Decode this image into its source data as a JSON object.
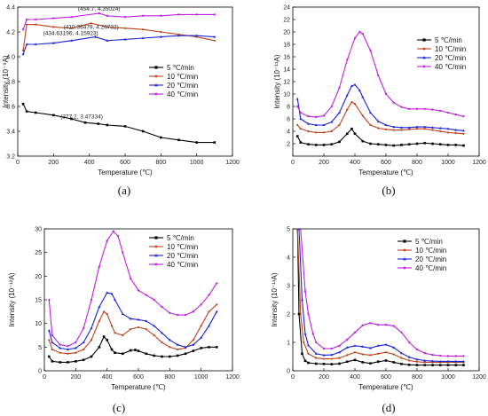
{
  "series_styles": [
    {
      "color": "#000000",
      "marker": "square"
    },
    {
      "color": "#c0401a",
      "marker": "circle"
    },
    {
      "color": "#1a22d6",
      "marker": "triangle"
    },
    {
      "color": "#c020e0",
      "marker": "star"
    }
  ],
  "chart_data": [
    {
      "type": "line",
      "panel": "(a)",
      "caption": "(a)",
      "xlabel": "Temperature (℃)",
      "ylabel": "Intensity (10⁻⁹A)",
      "xlim": [
        0,
        1200
      ],
      "ylim": [
        3.2,
        4.4
      ],
      "xticks": [
        "0",
        "200",
        "400",
        "600",
        "800",
        "1000",
        "1200"
      ],
      "yticks": [
        "3.2",
        "3.4",
        "3.6",
        "3.8",
        "4.0",
        "4.2",
        "4.4"
      ],
      "legend_position": "center-right",
      "series": [
        {
          "name": "5 ℃/min",
          "x": [
            30,
            50,
            100,
            200,
            300,
            377,
            450,
            500,
            600,
            700,
            800,
            900,
            1000,
            1100
          ],
          "y": [
            3.62,
            3.56,
            3.55,
            3.53,
            3.5,
            3.47,
            3.46,
            3.45,
            3.44,
            3.4,
            3.35,
            3.33,
            3.31,
            3.31
          ]
        },
        {
          "name": "10 ℃/min",
          "x": [
            30,
            50,
            100,
            200,
            300,
            410,
            500,
            600,
            700,
            800,
            900,
            1000,
            1100
          ],
          "y": [
            4.05,
            4.26,
            4.26,
            4.24,
            4.23,
            4.27,
            4.24,
            4.23,
            4.22,
            4.2,
            4.18,
            4.16,
            4.13
          ]
        },
        {
          "name": "20 ℃/min",
          "x": [
            30,
            50,
            100,
            200,
            300,
            434,
            500,
            600,
            700,
            800,
            900,
            1000,
            1100
          ],
          "y": [
            4.02,
            4.1,
            4.1,
            4.11,
            4.13,
            4.16,
            4.13,
            4.14,
            4.15,
            4.16,
            4.17,
            4.17,
            4.16
          ]
        },
        {
          "name": "40 ℃/min",
          "x": [
            30,
            50,
            100,
            200,
            300,
            454,
            500,
            600,
            700,
            800,
            900,
            1000,
            1100
          ],
          "y": [
            4.22,
            4.3,
            4.3,
            4.31,
            4.32,
            4.35,
            4.33,
            4.32,
            4.33,
            4.33,
            4.34,
            4.34,
            4.34
          ]
        }
      ],
      "annotations": [
        {
          "text": "(454.7, 4.35024)",
          "x": 454.7,
          "y": 4.35024
        },
        {
          "text": "(410.36479, 4.26732)",
          "x": 410.36,
          "y": 4.26732
        },
        {
          "text": "(434.63196, 4.15923)",
          "x": 434.63,
          "y": 4.15923
        },
        {
          "text": "(377.2, 3.47334)",
          "x": 377.2,
          "y": 3.47334
        }
      ]
    },
    {
      "type": "line",
      "panel": "(b)",
      "caption": "(b)",
      "xlabel": "Temperature (℃)",
      "ylabel": "Intensity (10⁻¹¹A)",
      "xlim": [
        0,
        1200
      ],
      "ylim": [
        0,
        24
      ],
      "xticks": [
        "0",
        "200",
        "400",
        "600",
        "800",
        "1000",
        "1200"
      ],
      "yticks": [
        "2",
        "4",
        "6",
        "8",
        "10",
        "12",
        "14",
        "16",
        "18",
        "20",
        "22",
        "24"
      ],
      "legend_position": "top-right",
      "series": [
        {
          "name": "5 ℃/min",
          "x": [
            30,
            50,
            100,
            150,
            200,
            250,
            300,
            350,
            380,
            400,
            450,
            500,
            550,
            600,
            650,
            700,
            750,
            800,
            850,
            900,
            950,
            1000,
            1050,
            1100
          ],
          "y": [
            3.2,
            2.2,
            1.9,
            1.8,
            1.8,
            1.9,
            2.3,
            3.6,
            4.4,
            3.6,
            2.4,
            2.0,
            1.9,
            1.8,
            1.7,
            1.8,
            1.9,
            2.0,
            2.1,
            2.0,
            1.9,
            1.8,
            1.8,
            1.7
          ]
        },
        {
          "name": "10 ℃/min",
          "x": [
            30,
            50,
            100,
            150,
            200,
            250,
            300,
            350,
            380,
            400,
            450,
            500,
            550,
            600,
            650,
            700,
            750,
            800,
            850,
            900,
            950,
            1000,
            1050,
            1100
          ],
          "y": [
            5.0,
            4.4,
            4.0,
            3.8,
            3.8,
            4.0,
            5.0,
            7.5,
            8.7,
            8.4,
            6.5,
            5.0,
            4.5,
            4.3,
            4.2,
            4.2,
            4.3,
            4.4,
            4.4,
            4.2,
            4.0,
            3.8,
            3.7,
            3.6
          ]
        },
        {
          "name": "20 ℃/min",
          "x": [
            30,
            50,
            100,
            150,
            200,
            250,
            300,
            350,
            380,
            400,
            430,
            450,
            500,
            550,
            600,
            650,
            700,
            750,
            800,
            850,
            900,
            950,
            1000,
            1050,
            1100
          ],
          "y": [
            9.2,
            6.0,
            5.2,
            5.0,
            5.0,
            5.5,
            7.0,
            9.8,
            11.3,
            11.5,
            10.6,
            9.5,
            7.0,
            5.6,
            5.0,
            4.7,
            4.6,
            4.6,
            4.7,
            4.7,
            4.6,
            4.5,
            4.4,
            4.2,
            4.1
          ]
        },
        {
          "name": "40 ℃/min",
          "x": [
            30,
            50,
            100,
            150,
            200,
            250,
            300,
            350,
            400,
            430,
            450,
            500,
            550,
            600,
            650,
            700,
            750,
            800,
            850,
            900,
            950,
            1000,
            1050,
            1100
          ],
          "y": [
            8.0,
            7.0,
            6.4,
            6.3,
            6.5,
            8.0,
            11.0,
            15.5,
            19.0,
            20.0,
            19.7,
            17.0,
            13.0,
            10.0,
            8.6,
            7.9,
            7.6,
            7.6,
            7.6,
            7.5,
            7.3,
            7.0,
            6.7,
            6.4
          ]
        }
      ]
    },
    {
      "type": "line",
      "panel": "(c)",
      "caption": "(c)",
      "xlabel": "Temperature (℃)",
      "ylabel": "Intensity (10⁻¹²A)",
      "xlim": [
        0,
        1200
      ],
      "ylim": [
        0,
        30
      ],
      "xticks": [
        "0",
        "200",
        "400",
        "600",
        "800",
        "1000",
        "1200"
      ],
      "yticks": [
        "0",
        "5",
        "10",
        "15",
        "20",
        "25",
        "30"
      ],
      "legend_position": "top-right",
      "series": [
        {
          "name": "5 ℃/min",
          "x": [
            30,
            50,
            100,
            150,
            200,
            250,
            300,
            350,
            380,
            400,
            430,
            450,
            500,
            550,
            580,
            600,
            650,
            700,
            750,
            800,
            850,
            900,
            950,
            1000,
            1050,
            1100
          ],
          "y": [
            3.0,
            2.0,
            1.8,
            1.8,
            2.0,
            2.3,
            3.0,
            5.0,
            7.2,
            6.5,
            4.5,
            3.8,
            3.6,
            4.3,
            4.4,
            4.2,
            3.6,
            3.2,
            3.0,
            3.0,
            3.2,
            3.6,
            4.2,
            4.8,
            5.0,
            5.0
          ]
        },
        {
          "name": "10 ℃/min",
          "x": [
            30,
            50,
            100,
            150,
            200,
            250,
            300,
            350,
            380,
            400,
            430,
            450,
            500,
            550,
            600,
            650,
            700,
            750,
            800,
            850,
            900,
            950,
            1000,
            1050,
            1100
          ],
          "y": [
            6.5,
            4.5,
            3.8,
            3.6,
            3.8,
            4.5,
            6.5,
            10.5,
            12.5,
            12.0,
            9.5,
            8.0,
            7.5,
            8.8,
            9.2,
            8.8,
            7.5,
            6.0,
            5.0,
            4.5,
            4.8,
            6.5,
            9.5,
            12.5,
            14.0
          ]
        },
        {
          "name": "20 ℃/min",
          "x": [
            30,
            50,
            100,
            150,
            200,
            250,
            300,
            350,
            400,
            430,
            450,
            500,
            550,
            600,
            650,
            700,
            750,
            800,
            850,
            900,
            950,
            1000,
            1050,
            1100
          ],
          "y": [
            8.5,
            6.0,
            4.8,
            4.5,
            4.8,
            6.0,
            9.0,
            13.5,
            16.5,
            16.3,
            15.0,
            12.0,
            11.0,
            10.8,
            10.5,
            9.5,
            8.0,
            6.5,
            5.5,
            5.0,
            5.5,
            7.0,
            9.5,
            12.5
          ]
        },
        {
          "name": "40 ℃/min",
          "x": [
            30,
            50,
            100,
            150,
            200,
            250,
            300,
            350,
            400,
            440,
            470,
            500,
            550,
            600,
            650,
            700,
            750,
            800,
            850,
            900,
            950,
            1000,
            1050,
            1100
          ],
          "y": [
            15.0,
            7.5,
            5.5,
            5.2,
            6.0,
            9.0,
            15.0,
            22.0,
            27.5,
            29.5,
            28.5,
            25.0,
            19.5,
            17.0,
            16.0,
            15.0,
            13.5,
            12.2,
            11.8,
            11.8,
            12.5,
            14.0,
            16.0,
            18.5
          ]
        }
      ]
    },
    {
      "type": "line",
      "panel": "(d)",
      "caption": "(d)",
      "xlabel": "Temperature (℃)",
      "ylabel": "Intensity (10⁻¹¹A)",
      "xlim": [
        0,
        1200
      ],
      "ylim": [
        0,
        5
      ],
      "xticks": [
        "0",
        "200",
        "400",
        "600",
        "800",
        "1000",
        "1200"
      ],
      "yticks": [
        "0",
        "1",
        "2",
        "3",
        "4",
        "5"
      ],
      "legend_position": "top-right",
      "series": [
        {
          "name": "5 ℃/min",
          "x": [
            30,
            40,
            60,
            80,
            100,
            150,
            200,
            250,
            300,
            350,
            400,
            450,
            500,
            550,
            600,
            650,
            700,
            750,
            800,
            850,
            900,
            950,
            1000,
            1050,
            1100
          ],
          "y": [
            5.0,
            2.0,
            0.6,
            0.35,
            0.28,
            0.25,
            0.24,
            0.23,
            0.25,
            0.32,
            0.38,
            0.3,
            0.26,
            0.32,
            0.36,
            0.3,
            0.24,
            0.21,
            0.2,
            0.2,
            0.2,
            0.2,
            0.2,
            0.2,
            0.2
          ]
        },
        {
          "name": "10 ℃/min",
          "x": [
            30,
            50,
            70,
            100,
            150,
            200,
            250,
            300,
            350,
            400,
            450,
            500,
            550,
            600,
            650,
            700,
            750,
            800,
            850,
            900,
            950,
            1000,
            1050,
            1100
          ],
          "y": [
            5.0,
            2.0,
            1.0,
            0.6,
            0.45,
            0.42,
            0.42,
            0.45,
            0.55,
            0.65,
            0.58,
            0.55,
            0.6,
            0.65,
            0.58,
            0.45,
            0.36,
            0.32,
            0.3,
            0.3,
            0.3,
            0.3,
            0.3,
            0.3
          ]
        },
        {
          "name": "20 ℃/min",
          "x": [
            40,
            60,
            80,
            100,
            150,
            200,
            250,
            300,
            350,
            400,
            450,
            500,
            550,
            600,
            650,
            700,
            750,
            800,
            850,
            900,
            950,
            1000,
            1050,
            1100
          ],
          "y": [
            5.0,
            2.5,
            1.3,
            0.9,
            0.6,
            0.55,
            0.56,
            0.65,
            0.82,
            0.88,
            0.85,
            0.8,
            0.88,
            0.92,
            0.82,
            0.62,
            0.48,
            0.4,
            0.36,
            0.34,
            0.33,
            0.33,
            0.33,
            0.33
          ]
        },
        {
          "name": "40 ℃/min",
          "x": [
            50,
            80,
            100,
            130,
            150,
            200,
            250,
            300,
            350,
            400,
            450,
            500,
            550,
            600,
            650,
            700,
            750,
            800,
            850,
            900,
            950,
            1000,
            1050,
            1100
          ],
          "y": [
            5.0,
            2.8,
            2.0,
            1.3,
            1.0,
            0.78,
            0.78,
            0.88,
            1.1,
            1.35,
            1.6,
            1.68,
            1.62,
            1.62,
            1.58,
            1.35,
            1.0,
            0.75,
            0.62,
            0.56,
            0.53,
            0.52,
            0.52,
            0.52
          ]
        }
      ]
    }
  ]
}
